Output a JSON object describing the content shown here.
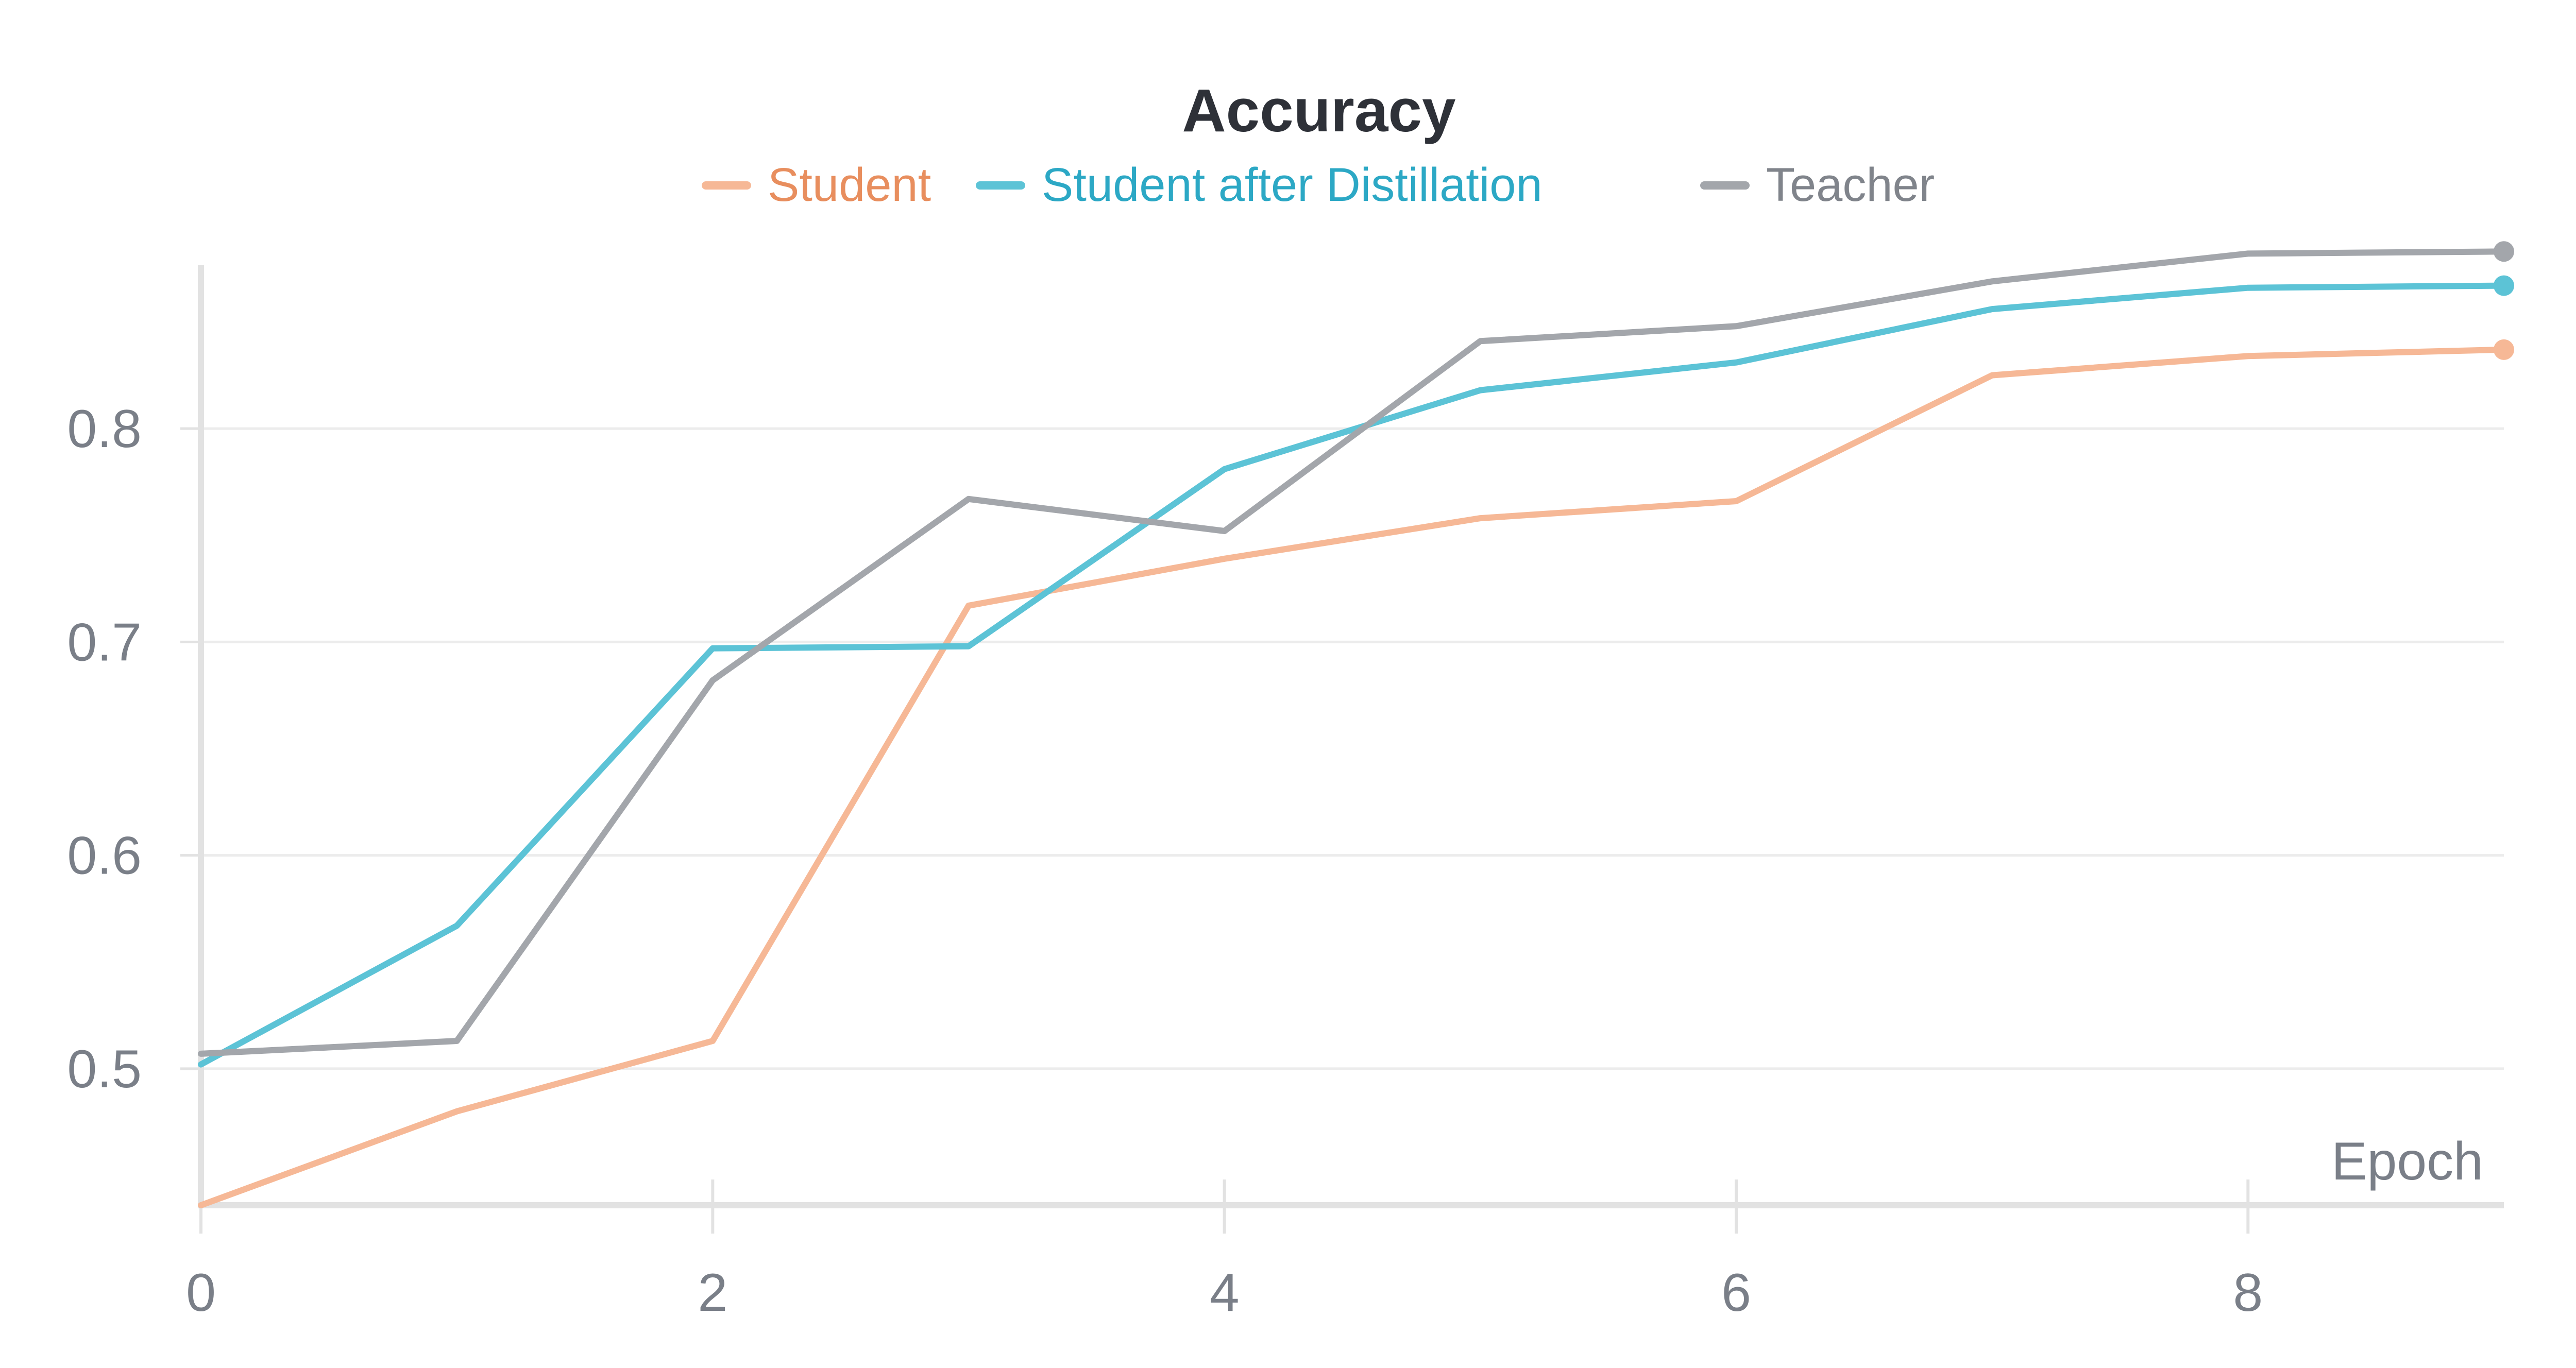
{
  "chart_data": {
    "type": "line",
    "title": "Accuracy",
    "xlabel": "Epoch",
    "ylabel": "",
    "x": [
      0,
      1,
      2,
      3,
      4,
      5,
      6,
      7,
      8,
      9
    ],
    "xlim": [
      0,
      9
    ],
    "ylim": [
      0.436,
      0.885
    ],
    "xticks": [
      0,
      2,
      4,
      6,
      8
    ],
    "yticks": [
      0.5,
      0.6,
      0.7,
      0.8
    ],
    "xtick_labels": [
      "0",
      "2",
      "4",
      "6",
      "8"
    ],
    "ytick_labels": [
      "0.5",
      "0.6",
      "0.7",
      "0.8"
    ],
    "grid": "horizontal",
    "legend_position": "top",
    "series": [
      {
        "name": "Student",
        "color": "#f6b896",
        "text_color": "#e88e5e",
        "values": [
          0.436,
          0.48,
          0.513,
          0.717,
          0.739,
          0.758,
          0.766,
          0.825,
          0.834,
          0.837
        ]
      },
      {
        "name": "Student after Distillation",
        "color": "#5cc3d6",
        "text_color": "#2ca8c5",
        "values": [
          0.502,
          0.567,
          0.697,
          0.698,
          0.781,
          0.818,
          0.831,
          0.856,
          0.866,
          0.867
        ]
      },
      {
        "name": "Teacher",
        "color": "#a3a6ab",
        "text_color": "#80848b",
        "values": [
          0.507,
          0.513,
          0.682,
          0.767,
          0.752,
          0.841,
          0.848,
          0.869,
          0.882,
          0.883
        ]
      }
    ]
  }
}
